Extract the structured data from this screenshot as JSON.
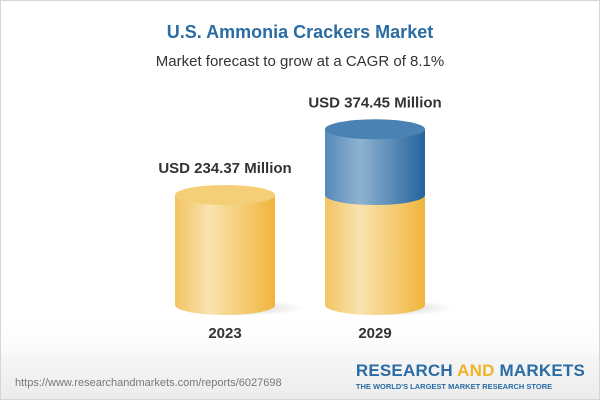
{
  "title": "U.S. Ammonia Crackers Market",
  "subtitle": "Market forecast to grow at a CAGR of 8.1%",
  "chart_data": {
    "type": "bar",
    "style": "3d-cylinder",
    "categories": [
      "2023",
      "2029"
    ],
    "values": [
      234.37,
      374.45
    ],
    "data_labels": [
      "USD 234.37 Million",
      "USD 374.45 Million"
    ],
    "unit": "USD Million",
    "colors": {
      "base": "#f3c55c",
      "growth": "#3f7bb0"
    }
  },
  "footer": {
    "url": "https://www.researchandmarkets.com/reports/6027698",
    "logo_part1": "RESEARCH ",
    "logo_part2": "AND",
    "logo_part3": " MARKETS",
    "tagline": "THE WORLD'S LARGEST MARKET RESEARCH STORE"
  }
}
